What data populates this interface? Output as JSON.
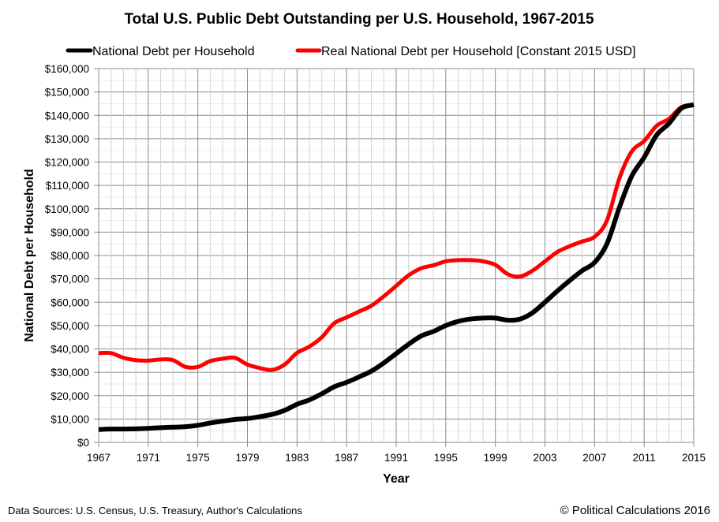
{
  "chart_data": {
    "type": "line",
    "title": "Total U.S. Public Debt Outstanding per U.S. Household, 1967-2015",
    "xlabel": "Year",
    "ylabel": "National Debt per Household",
    "xlim": [
      1967,
      2015
    ],
    "ylim": [
      0,
      160000
    ],
    "x_ticks": [
      "1967",
      "1971",
      "1975",
      "1979",
      "1983",
      "1987",
      "1991",
      "1995",
      "1999",
      "2003",
      "2007",
      "2011",
      "2015"
    ],
    "y_ticks": [
      "$0",
      "$10,000",
      "$20,000",
      "$30,000",
      "$40,000",
      "$50,000",
      "$60,000",
      "$70,000",
      "$80,000",
      "$90,000",
      "$100,000",
      "$110,000",
      "$120,000",
      "$130,000",
      "$140,000",
      "$150,000",
      "$160,000"
    ],
    "grid": true,
    "legend_position": "top",
    "x": [
      1967,
      1968,
      1969,
      1970,
      1971,
      1972,
      1973,
      1974,
      1975,
      1976,
      1977,
      1978,
      1979,
      1980,
      1981,
      1982,
      1983,
      1984,
      1985,
      1986,
      1987,
      1988,
      1989,
      1990,
      1991,
      1992,
      1993,
      1994,
      1995,
      1996,
      1997,
      1998,
      1999,
      2000,
      2001,
      2002,
      2003,
      2004,
      2005,
      2006,
      2007,
      2008,
      2009,
      2010,
      2011,
      2012,
      2013,
      2014,
      2015
    ],
    "series": [
      {
        "name": "National Debt per Household",
        "color": "#000000",
        "values": [
          5500,
          5700,
          5700,
          5800,
          6000,
          6300,
          6500,
          6700,
          7300,
          8300,
          9100,
          9800,
          10200,
          11000,
          12000,
          13700,
          16300,
          18200,
          20800,
          23800,
          25700,
          28000,
          30500,
          34000,
          38000,
          42000,
          45500,
          47500,
          50000,
          51800,
          52800,
          53200,
          53200,
          52300,
          52800,
          55500,
          60000,
          64800,
          69300,
          73500,
          77000,
          85000,
          100500,
          114000,
          122000,
          131500,
          136500,
          143000,
          144500
        ]
      },
      {
        "name": "Real National Debt per Household [Constant 2015 USD]",
        "color": "#ff0000",
        "values": [
          38200,
          38200,
          36200,
          35200,
          35000,
          35500,
          35200,
          32300,
          32300,
          34800,
          35800,
          36200,
          33300,
          31800,
          31000,
          33300,
          38300,
          41000,
          45000,
          51000,
          53500,
          56000,
          58500,
          62500,
          67000,
          71500,
          74500,
          75800,
          77500,
          78000,
          78000,
          77500,
          76000,
          72000,
          71000,
          73500,
          77500,
          81500,
          84000,
          86000,
          88000,
          95000,
          113000,
          124500,
          129000,
          135500,
          138500,
          143500,
          144500
        ]
      }
    ]
  },
  "footer": {
    "sources": "Data Sources: U.S. Census, U.S. Treasury, Author's Calculations",
    "copyright": "© Political Calculations 2016"
  }
}
